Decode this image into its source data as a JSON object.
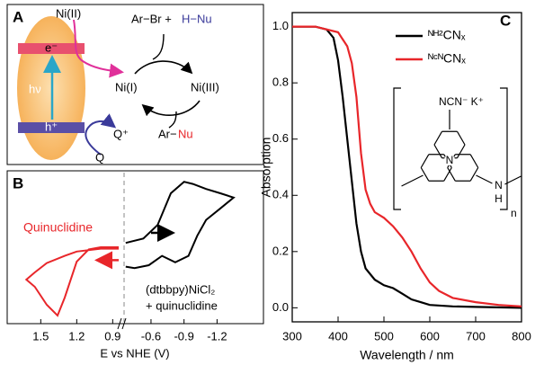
{
  "panel_a": {
    "label": "A",
    "ni2": "Ni(II)",
    "electron": "e⁻",
    "hv": "hν",
    "hole": "h⁺",
    "q_plus": "Q⁺",
    "q": "Q",
    "arbr": "Ar−Br +",
    "hnu": "H−Nu",
    "ni1": "Ni(I)",
    "ni3": "Ni(III)",
    "ar": "Ar−",
    "nu": "Nu"
  },
  "chart_data": [
    {
      "type": "cv",
      "label": "B",
      "xlabel": "E vs NHE (V)",
      "xlim": [
        1.75,
        0.85
      ],
      "xticks": [
        1.5,
        1.2,
        0.9
      ],
      "x2lim": [
        -0.29,
        -1.45
      ],
      "x2ticks": [
        -0.6,
        -0.9,
        -1.2
      ],
      "ylim": [
        -1,
        1
      ],
      "series": [
        {
          "name": "Quinuclidine",
          "color": "#e8262a",
          "x": [
            0.85,
            1.0,
            1.1,
            1.2,
            1.3,
            1.36,
            1.45,
            1.55,
            1.62,
            1.55,
            1.45,
            1.3,
            1.2,
            1.0,
            0.85
          ],
          "values": [
            0,
            0,
            -0.03,
            -0.2,
            -0.7,
            -0.95,
            -0.8,
            -0.55,
            -0.45,
            -0.35,
            -0.22,
            -0.12,
            -0.06,
            -0.02,
            -0.02
          ]
        },
        {
          "name": "(dtbbpy)NiCl₂",
          "color": "#000000",
          "axis": "x2",
          "x": [
            -0.37,
            -0.53,
            -0.66,
            -0.78,
            -0.9,
            -0.98,
            -1.1,
            -1.23,
            -1.35,
            -1.23,
            -1.1,
            -1.02,
            -0.94,
            -0.82,
            -0.7,
            -0.58,
            -0.45,
            -0.37
          ],
          "values": [
            0.06,
            0.12,
            0.31,
            0.75,
            0.91,
            0.88,
            0.81,
            0.75,
            0.69,
            0.54,
            0.38,
            0.16,
            -0.12,
            -0.21,
            -0.12,
            -0.25,
            -0.29,
            -0.27
          ]
        }
      ],
      "annotations": [
        "+ quinuclidine"
      ]
    },
    {
      "type": "line",
      "label": "C",
      "xlabel": "Wavelength / nm",
      "ylabel": "Absorption",
      "xlim": [
        300,
        800
      ],
      "xticks": [
        300,
        400,
        500,
        600,
        700,
        800
      ],
      "ylim": [
        -0.05,
        1.05
      ],
      "yticks": [
        {
          "value": 0,
          "label": "0.0"
        },
        0.2,
        0.4,
        0.6,
        0.8,
        {
          "value": 1,
          "label": "1.0"
        }
      ],
      "series": [
        {
          "name": "ᴺᴴ²CNₓ",
          "color": "#000000",
          "x": [
            300,
            350,
            375,
            390,
            400,
            410,
            420,
            430,
            440,
            450,
            460,
            480,
            500,
            520,
            540,
            560,
            580,
            600,
            650,
            700,
            800
          ],
          "values": [
            1.0,
            1.0,
            0.99,
            0.96,
            0.88,
            0.75,
            0.6,
            0.45,
            0.3,
            0.2,
            0.14,
            0.1,
            0.08,
            0.07,
            0.05,
            0.03,
            0.02,
            0.01,
            0.005,
            0.003,
            0
          ]
        },
        {
          "name": "ᴺᶜᴺCNₓ",
          "color": "#e8262a",
          "x": [
            300,
            350,
            400,
            420,
            430,
            440,
            450,
            460,
            470,
            480,
            500,
            520,
            540,
            560,
            580,
            600,
            620,
            650,
            700,
            750,
            800
          ],
          "values": [
            1.0,
            1.0,
            0.98,
            0.93,
            0.87,
            0.75,
            0.55,
            0.42,
            0.37,
            0.34,
            0.32,
            0.29,
            0.25,
            0.2,
            0.14,
            0.09,
            0.06,
            0.035,
            0.02,
            0.01,
            0.005
          ]
        }
      ],
      "structure": {
        "atom": "N",
        "substituent": "NCN⁻ K⁺",
        "hydrogen": "H",
        "repeat": "n"
      }
    }
  ]
}
